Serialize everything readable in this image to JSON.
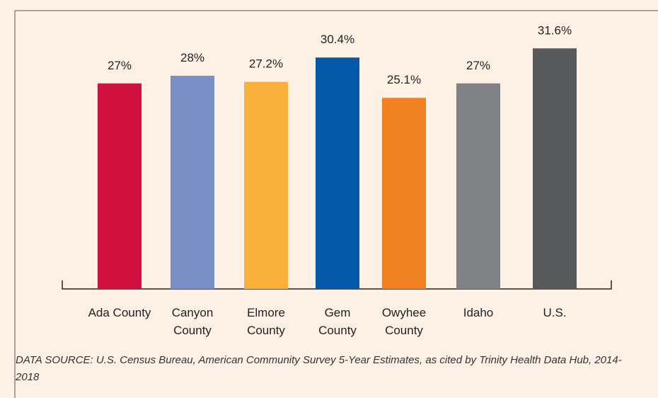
{
  "chart_data": {
    "type": "bar",
    "categories": [
      "Ada County",
      "Canyon County",
      "Elmore County",
      "Gem County",
      "Owyhee County",
      "Idaho",
      "U.S."
    ],
    "values": [
      27,
      28,
      27.2,
      30.4,
      25.1,
      27,
      31.6
    ],
    "value_labels": [
      "27%",
      "28%",
      "27.2%",
      "30.4%",
      "25.1%",
      "27%",
      "31.6%"
    ],
    "colors": [
      "#d0103f",
      "#7b8fc6",
      "#f9b13b",
      "#0359a8",
      "#f28123",
      "#808184",
      "#58595b"
    ],
    "source": "DATA SOURCE: U.S. Census Bureau, American Community Survey 5-Year Estimates, as cited by Trinity Health Data Hub, 2014-2018"
  }
}
